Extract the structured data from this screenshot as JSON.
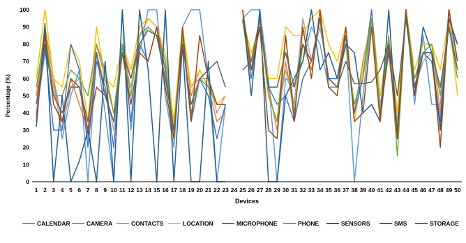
{
  "chart_data": {
    "type": "line",
    "title": "",
    "xlabel": "Devices",
    "ylabel": "Percentage (%)",
    "ylim": [
      0,
      100
    ],
    "ytick_step": 10,
    "grid": false,
    "legend_position": "bottom",
    "x": [
      1,
      2,
      3,
      4,
      5,
      6,
      7,
      8,
      9,
      10,
      11,
      12,
      13,
      14,
      15,
      16,
      17,
      18,
      19,
      20,
      21,
      22,
      23,
      24,
      25,
      26,
      27,
      28,
      29,
      30,
      31,
      32,
      33,
      34,
      35,
      36,
      37,
      38,
      39,
      40,
      41,
      42,
      43,
      44,
      45,
      46,
      47,
      48,
      49,
      50
    ],
    "series": [
      {
        "name": "CALENDAR",
        "color": "#5b9bd5",
        "values": [
          40,
          75,
          60,
          25,
          50,
          65,
          0,
          75,
          40,
          0,
          100,
          30,
          75,
          100,
          100,
          50,
          20,
          90,
          100,
          100,
          60,
          0,
          45,
          null,
          95,
          100,
          100,
          60,
          0,
          60,
          55,
          70,
          90,
          80,
          55,
          55,
          85,
          0,
          50,
          95,
          40,
          80,
          40,
          100,
          45,
          85,
          45,
          45,
          90,
          80
        ]
      },
      {
        "name": "CAMERA",
        "color": "#ed7d31",
        "values": [
          50,
          90,
          60,
          35,
          60,
          45,
          30,
          80,
          60,
          40,
          80,
          60,
          85,
          95,
          90,
          70,
          25,
          90,
          50,
          65,
          55,
          35,
          40,
          null,
          95,
          70,
          90,
          55,
          30,
          70,
          40,
          80,
          65,
          95,
          60,
          60,
          90,
          40,
          70,
          95,
          40,
          80,
          40,
          100,
          60,
          75,
          80,
          40,
          100,
          70
        ]
      },
      {
        "name": "CONTACTS",
        "color": "#a5a5a5",
        "values": [
          45,
          85,
          55,
          30,
          55,
          60,
          25,
          75,
          55,
          30,
          75,
          55,
          80,
          90,
          85,
          65,
          25,
          85,
          55,
          60,
          60,
          40,
          50,
          null,
          95,
          65,
          95,
          50,
          35,
          65,
          45,
          95,
          70,
          90,
          60,
          55,
          80,
          45,
          65,
          90,
          45,
          75,
          35,
          95,
          55,
          70,
          75,
          50,
          95,
          65
        ]
      },
      {
        "name": "LOCATION",
        "color": "#ffc000",
        "values": [
          60,
          100,
          60,
          55,
          80,
          70,
          35,
          90,
          60,
          55,
          80,
          65,
          90,
          95,
          90,
          75,
          35,
          90,
          55,
          65,
          55,
          45,
          50,
          null,
          95,
          75,
          90,
          60,
          60,
          90,
          85,
          85,
          95,
          100,
          80,
          70,
          90,
          35,
          65,
          100,
          50,
          85,
          40,
          100,
          65,
          80,
          80,
          65,
          95,
          50
        ]
      },
      {
        "name": "MICROPHONE",
        "color": "#4472c4",
        "values": [
          38,
          78,
          30,
          30,
          80,
          65,
          20,
          70,
          55,
          20,
          80,
          35,
          80,
          70,
          90,
          65,
          30,
          85,
          35,
          60,
          50,
          25,
          45,
          null,
          94,
          60,
          95,
          55,
          45,
          50,
          35,
          60,
          70,
          95,
          60,
          60,
          85,
          40,
          60,
          100,
          40,
          75,
          30,
          100,
          55,
          75,
          70,
          35,
          100,
          70
        ]
      },
      {
        "name": "PHONE",
        "color": "#70ad47",
        "values": [
          55,
          88,
          50,
          50,
          65,
          60,
          50,
          80,
          65,
          40,
          80,
          50,
          85,
          90,
          85,
          70,
          30,
          85,
          40,
          60,
          55,
          45,
          45,
          null,
          93,
          65,
          95,
          50,
          35,
          85,
          40,
          80,
          70,
          95,
          60,
          55,
          80,
          45,
          60,
          95,
          40,
          85,
          15,
          100,
          60,
          75,
          80,
          50,
          90,
          60
        ]
      },
      {
        "name": "SENSORS",
        "color": "#255e91",
        "values": [
          32,
          92,
          0,
          50,
          0,
          12,
          30,
          0,
          70,
          0,
          100,
          0,
          100,
          65,
          0,
          100,
          0,
          80,
          0,
          0,
          70,
          0,
          0,
          null,
          100,
          50,
          100,
          0,
          0,
          50,
          60,
          70,
          100,
          65,
          75,
          60,
          80,
          75,
          40,
          45,
          35,
          100,
          25,
          100,
          50,
          90,
          75,
          30,
          95,
          80
        ]
      },
      {
        "name": "SMS",
        "color": "#9e480e",
        "values": [
          35,
          85,
          45,
          35,
          60,
          55,
          30,
          55,
          50,
          35,
          75,
          45,
          75,
          70,
          90,
          55,
          25,
          90,
          35,
          85,
          60,
          45,
          45,
          null,
          100,
          65,
          90,
          30,
          25,
          85,
          35,
          90,
          60,
          100,
          55,
          50,
          90,
          35,
          40,
          90,
          35,
          80,
          25,
          100,
          50,
          75,
          75,
          20,
          100,
          70
        ]
      },
      {
        "name": "STORAGE",
        "color": "#636363",
        "values": [
          45,
          80,
          50,
          40,
          55,
          55,
          35,
          75,
          50,
          35,
          75,
          60,
          80,
          88,
          85,
          60,
          30,
          80,
          45,
          60,
          65,
          70,
          55,
          null,
          65,
          70,
          95,
          55,
          55,
          75,
          55,
          80,
          70,
          95,
          60,
          55,
          70,
          57,
          57,
          58,
          65,
          80,
          50,
          95,
          55,
          75,
          75,
          55,
          90,
          65
        ]
      }
    ]
  }
}
